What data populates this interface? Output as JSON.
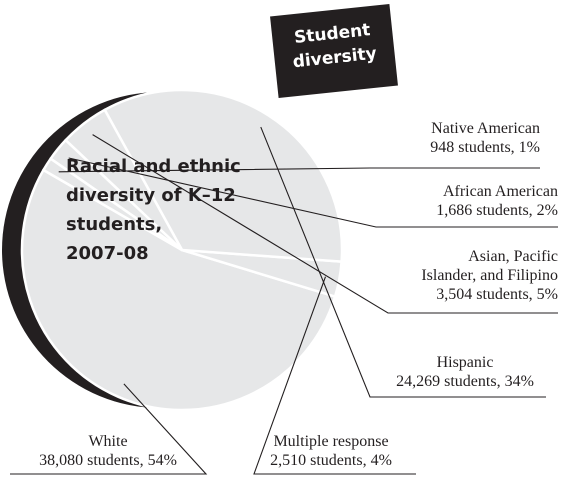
{
  "banner": {
    "line1": "Student",
    "line2": "diversity"
  },
  "chart_data": {
    "type": "pie",
    "title_lines": [
      "Racial and ethnic",
      "diversity of K–12",
      "students,",
      "2007-08"
    ],
    "slices": [
      {
        "label": "Native American",
        "students": "948 students",
        "percent": "1%",
        "value": 948
      },
      {
        "label": "African American",
        "students": "1,686 students",
        "percent": "2%",
        "value": 1686
      },
      {
        "label_lines": [
          "Asian, Pacific",
          "Islander, and Filipino"
        ],
        "students": "3,504 students",
        "percent": "5%",
        "value": 3504
      },
      {
        "label": "Hispanic",
        "students": "24,269 students",
        "percent": "34%",
        "value": 24269
      },
      {
        "label": "Multiple response",
        "students": "2,510 students",
        "percent": "4%",
        "value": 2510
      },
      {
        "label": "White",
        "students": "38,080 students",
        "percent": "54%",
        "value": 38080
      }
    ],
    "colors": {
      "slice_fill": "#e6e7e8",
      "shadow": "#231f20",
      "divider": "#ffffff",
      "text": "#231f20"
    }
  }
}
